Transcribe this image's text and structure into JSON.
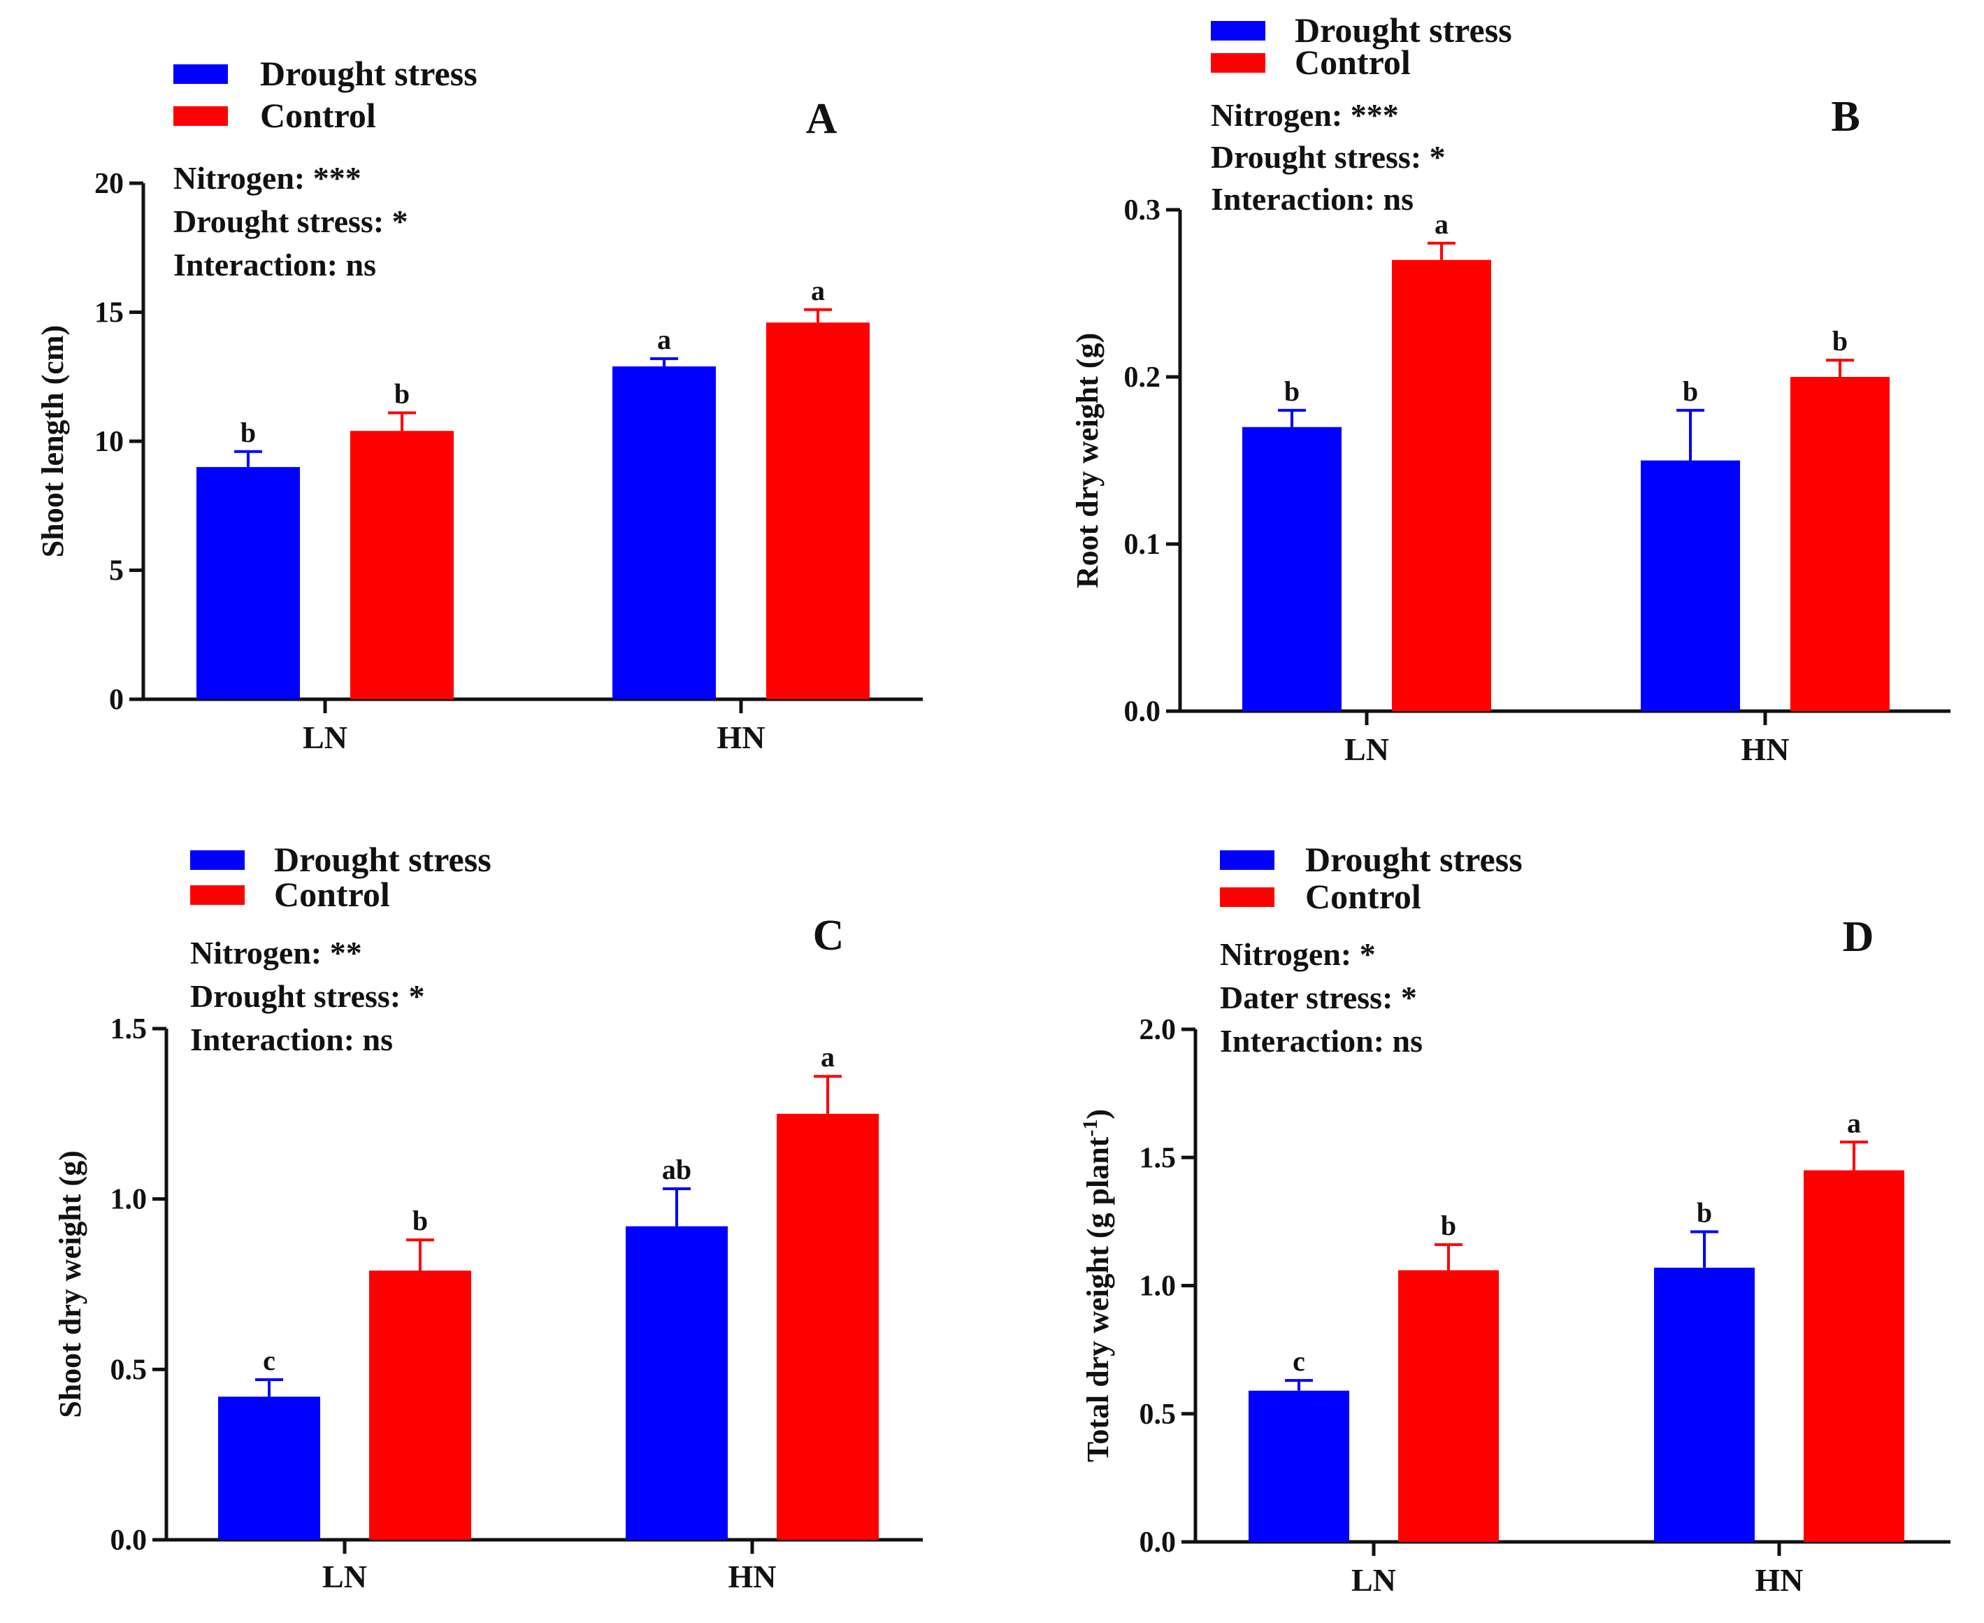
{
  "chart_data": [
    {
      "panel": "A",
      "type": "bar",
      "categories": [
        "LN",
        "HN"
      ],
      "series": [
        {
          "name": "Drought stress",
          "color": "#0000ff",
          "values": [
            9.0,
            12.9
          ],
          "errors": [
            0.6,
            0.3
          ],
          "letters": [
            "b",
            "a"
          ]
        },
        {
          "name": "Control",
          "color": "#ff0000",
          "values": [
            10.4,
            14.6
          ],
          "errors": [
            0.7,
            0.5
          ],
          "letters": [
            "b",
            "a"
          ]
        }
      ],
      "ylabel": "Shoot length (cm)",
      "ylim": [
        0,
        20
      ],
      "yticks": [
        0,
        5,
        10,
        15,
        20
      ],
      "ytick_labels": [
        "0",
        "5",
        "10",
        "15",
        "20"
      ],
      "stats": [
        "Nitrogen: ***",
        "Drought stress: *",
        "Interaction: ns"
      ],
      "legend": [
        "Drought stress",
        "Control"
      ],
      "legend_position": "top-left"
    },
    {
      "panel": "B",
      "type": "bar",
      "categories": [
        "LN",
        "HN"
      ],
      "series": [
        {
          "name": "Drought stress",
          "color": "#0000ff",
          "values": [
            0.17,
            0.15
          ],
          "errors": [
            0.01,
            0.03
          ],
          "letters": [
            "b",
            "b"
          ]
        },
        {
          "name": "Control",
          "color": "#ff0000",
          "values": [
            0.27,
            0.2
          ],
          "errors": [
            0.01,
            0.01
          ],
          "letters": [
            "a",
            "b"
          ]
        }
      ],
      "ylabel": "Root dry weight (g)",
      "ylim": [
        0,
        0.3
      ],
      "yticks": [
        0,
        0.1,
        0.2,
        0.3
      ],
      "ytick_labels": [
        "0.0",
        "0.1",
        "0.2",
        "0.3"
      ],
      "stats": [
        "Nitrogen: ***",
        "Drought stress: *",
        "Interaction: ns"
      ],
      "legend": [
        "Drought stress",
        "Control"
      ],
      "legend_position": "top-left"
    },
    {
      "panel": "C",
      "type": "bar",
      "categories": [
        "LN",
        "HN"
      ],
      "series": [
        {
          "name": "Drought stress",
          "color": "#0000ff",
          "values": [
            0.42,
            0.92
          ],
          "errors": [
            0.05,
            0.11
          ],
          "letters": [
            "c",
            "ab"
          ]
        },
        {
          "name": "Control",
          "color": "#ff0000",
          "values": [
            0.79,
            1.25
          ],
          "errors": [
            0.09,
            0.11
          ],
          "letters": [
            "b",
            "a"
          ]
        }
      ],
      "ylabel": "Shoot dry weight (g)",
      "ylim": [
        0,
        1.5
      ],
      "yticks": [
        0,
        0.5,
        1.0,
        1.5
      ],
      "ytick_labels": [
        "0.0",
        "0.5",
        "1.0",
        "1.5"
      ],
      "stats": [
        "Nitrogen: **",
        "Drought stress: *",
        "Interaction: ns"
      ],
      "legend": [
        "Drought stress",
        "Control"
      ],
      "legend_position": "top-left"
    },
    {
      "panel": "D",
      "type": "bar",
      "categories": [
        "LN",
        "HN"
      ],
      "series": [
        {
          "name": "Drought stress",
          "color": "#0000ff",
          "values": [
            0.59,
            1.07
          ],
          "errors": [
            0.04,
            0.14
          ],
          "letters": [
            "c",
            "b"
          ]
        },
        {
          "name": "Control",
          "color": "#ff0000",
          "values": [
            1.06,
            1.45
          ],
          "errors": [
            0.1,
            0.11
          ],
          "letters": [
            "b",
            "a"
          ]
        }
      ],
      "ylabel": "Total dry weight (g plant",
      "ylabel_sup": "-1",
      "ylabel_tail": ")",
      "ylim": [
        0,
        2.0
      ],
      "yticks": [
        0,
        0.5,
        1.0,
        1.5,
        2.0
      ],
      "ytick_labels": [
        "0.0",
        "0.5",
        "1.0",
        "1.5",
        "2.0"
      ],
      "stats": [
        "Nitrogen: *",
        "Dater stress: *",
        "Interaction: ns"
      ],
      "legend": [
        "Drought stress",
        "Control"
      ],
      "legend_position": "top-left"
    }
  ]
}
